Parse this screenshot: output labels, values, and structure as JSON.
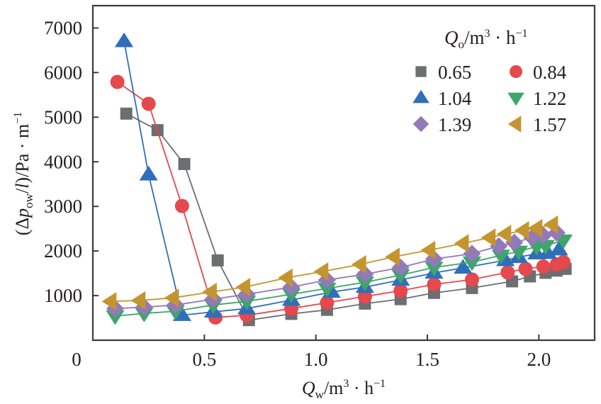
{
  "chart_data": {
    "type": "line",
    "title": "",
    "xlabel": {
      "main": "Q",
      "sub": "w",
      "unit_pre": "/m",
      "unit_sup": "3",
      "unit_mid": " · h",
      "unit_sup2": "−1"
    },
    "ylabel": {
      "pre": "(Δ",
      "p": "p",
      "sub": "ow",
      "post": "/",
      "l": "l",
      "unit": ")/Pa · m",
      "unit_sup": "−1"
    },
    "xlim": [
      0,
      2.25
    ],
    "ylim": [
      0,
      7500
    ],
    "origin_label": "0",
    "xticks": [
      {
        "value": 0.5,
        "label": "0.5"
      },
      {
        "value": 1.0,
        "label": "1.0"
      },
      {
        "value": 1.5,
        "label": "1.5"
      },
      {
        "value": 2.0,
        "label": "2.0"
      }
    ],
    "yticks": [
      {
        "value": 1000,
        "label": "1000"
      },
      {
        "value": 2000,
        "label": "2000"
      },
      {
        "value": 3000,
        "label": "3000"
      },
      {
        "value": 4000,
        "label": "4000"
      },
      {
        "value": 5000,
        "label": "5000"
      },
      {
        "value": 6000,
        "label": "6000"
      },
      {
        "value": 7000,
        "label": "7000"
      }
    ],
    "grid": false,
    "legend": {
      "placement": "top-right",
      "title": {
        "main": "Q",
        "sub": "o",
        "unit_pre": "/m",
        "unit_sup": "3",
        "unit_mid": " · h",
        "unit_sup2": "−1"
      },
      "columns": 2
    },
    "series": [
      {
        "name": "0.65",
        "marker": "square",
        "color": "#6d6e70",
        "x": [
          0.15,
          0.29,
          0.41,
          0.56,
          0.7,
          0.89,
          1.05,
          1.22,
          1.38,
          1.53,
          1.7,
          1.88,
          1.96,
          2.03,
          2.08,
          2.12
        ],
        "y": [
          5080,
          4710,
          3950,
          1790,
          450,
          590,
          680,
          820,
          920,
          1060,
          1170,
          1320,
          1430,
          1510,
          1560,
          1600
        ]
      },
      {
        "name": "0.84",
        "marker": "circle",
        "color": "#e5484d",
        "x": [
          0.11,
          0.25,
          0.4,
          0.55,
          0.69,
          0.89,
          1.05,
          1.22,
          1.38,
          1.53,
          1.7,
          1.86,
          1.94,
          2.02,
          2.08,
          2.11
        ],
        "y": [
          5790,
          5300,
          3010,
          510,
          560,
          710,
          840,
          980,
          1110,
          1250,
          1360,
          1520,
          1600,
          1650,
          1700,
          1750
        ]
      },
      {
        "name": "1.04",
        "marker": "triangle-up",
        "color": "#2f6fba",
        "x": [
          0.14,
          0.25,
          0.4,
          0.54,
          0.69,
          0.89,
          1.07,
          1.22,
          1.38,
          1.53,
          1.66,
          1.85,
          1.91,
          1.99,
          2.04,
          2.09
        ],
        "y": [
          6700,
          3710,
          560,
          635,
          710,
          900,
          1080,
          1190,
          1350,
          1510,
          1620,
          1790,
          1860,
          1940,
          1950,
          2030
        ]
      },
      {
        "name": "1.22",
        "marker": "triangle-down",
        "color": "#3ea56b",
        "x": [
          0.1,
          0.23,
          0.37,
          0.54,
          0.69,
          0.89,
          1.05,
          1.22,
          1.38,
          1.53,
          1.7,
          1.83,
          1.91,
          1.99,
          2.03,
          2.11
        ],
        "y": [
          540,
          600,
          650,
          790,
          870,
          1030,
          1160,
          1300,
          1460,
          1630,
          1750,
          1900,
          1990,
          2100,
          2120,
          2240
        ]
      },
      {
        "name": "1.39",
        "marker": "diamond",
        "color": "#9279b8",
        "x": [
          0.1,
          0.23,
          0.37,
          0.54,
          0.69,
          0.89,
          1.05,
          1.22,
          1.38,
          1.53,
          1.7,
          1.82,
          1.89,
          1.97,
          2.02,
          2.08
        ],
        "y": [
          710,
          740,
          790,
          920,
          1030,
          1190,
          1350,
          1480,
          1630,
          1820,
          1940,
          2110,
          2190,
          2300,
          2350,
          2410
        ]
      },
      {
        "name": "1.57",
        "marker": "triangle-left",
        "color": "#c4952f",
        "x": [
          0.08,
          0.21,
          0.36,
          0.53,
          0.68,
          0.87,
          1.03,
          1.2,
          1.35,
          1.51,
          1.66,
          1.78,
          1.85,
          1.93,
          1.99,
          2.06
        ],
        "y": [
          870,
          890,
          950,
          1080,
          1190,
          1400,
          1540,
          1700,
          1870,
          2020,
          2170,
          2300,
          2380,
          2460,
          2510,
          2590
        ]
      }
    ]
  }
}
